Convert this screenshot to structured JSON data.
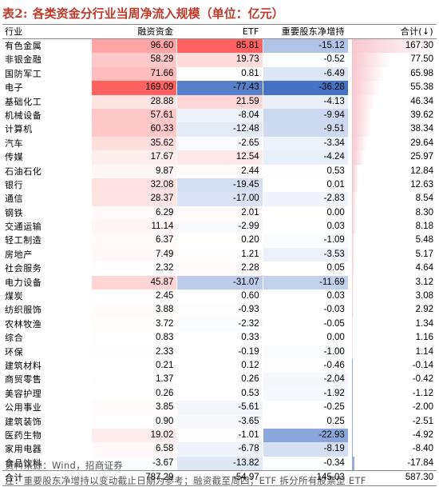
{
  "title": {
    "label": "表2:",
    "text": "各类资金分行业当周净流入规模（单位：亿元）"
  },
  "columns": {
    "name": "行业",
    "rzzj": "融资资金",
    "etf": "ETF",
    "gd": "重要股东净增持",
    "sum": "合计(↓)"
  },
  "rows": [
    {
      "name": "有色金属",
      "rzzj": "96.60",
      "etf": "85.81",
      "gd": "-15.12",
      "sum": "167.30"
    },
    {
      "name": "非银金融",
      "rzzj": "58.29",
      "etf": "19.73",
      "gd": "-0.52",
      "sum": "77.50"
    },
    {
      "name": "国防军工",
      "rzzj": "71.66",
      "etf": "0.81",
      "gd": "-6.49",
      "sum": "65.98"
    },
    {
      "name": "电子",
      "rzzj": "169.09",
      "etf": "-77.43",
      "gd": "-36.28",
      "sum": "55.38"
    },
    {
      "name": "基础化工",
      "rzzj": "28.88",
      "etf": "21.59",
      "gd": "-4.13",
      "sum": "46.34"
    },
    {
      "name": "机械设备",
      "rzzj": "57.61",
      "etf": "-8.04",
      "gd": "-9.94",
      "sum": "39.62"
    },
    {
      "name": "计算机",
      "rzzj": "60.33",
      "etf": "-12.48",
      "gd": "-9.51",
      "sum": "38.34"
    },
    {
      "name": "汽车",
      "rzzj": "35.62",
      "etf": "-2.65",
      "gd": "-3.34",
      "sum": "29.64"
    },
    {
      "name": "传媒",
      "rzzj": "17.67",
      "etf": "12.54",
      "gd": "-4.24",
      "sum": "25.97"
    },
    {
      "name": "石油石化",
      "rzzj": "9.87",
      "etf": "2.44",
      "gd": "0.53",
      "sum": "12.84"
    },
    {
      "name": "银行",
      "rzzj": "32.08",
      "etf": "-19.45",
      "gd": "0.01",
      "sum": "12.63"
    },
    {
      "name": "通信",
      "rzzj": "28.37",
      "etf": "-17.00",
      "gd": "-2.83",
      "sum": "8.54"
    },
    {
      "name": "钢铁",
      "rzzj": "6.29",
      "etf": "2.01",
      "gd": "0.00",
      "sum": "8.30"
    },
    {
      "name": "交通运输",
      "rzzj": "11.14",
      "etf": "-2.99",
      "gd": "0.03",
      "sum": "8.18"
    },
    {
      "name": "轻工制造",
      "rzzj": "6.37",
      "etf": "0.20",
      "gd": "-1.09",
      "sum": "5.48"
    },
    {
      "name": "房地产",
      "rzzj": "7.49",
      "etf": "1.21",
      "gd": "-3.53",
      "sum": "5.17"
    },
    {
      "name": "社会服务",
      "rzzj": "2.32",
      "etf": "2.28",
      "gd": "0.05",
      "sum": "4.64"
    },
    {
      "name": "电力设备",
      "rzzj": "45.87",
      "etf": "-31.07",
      "gd": "-11.69",
      "sum": "3.12"
    },
    {
      "name": "煤炭",
      "rzzj": "2.45",
      "etf": "0.60",
      "gd": "0.03",
      "sum": "3.08"
    },
    {
      "name": "纺织服饰",
      "rzzj": "3.88",
      "etf": "-0.93",
      "gd": "-0.03",
      "sum": "2.92"
    },
    {
      "name": "农林牧渔",
      "rzzj": "3.72",
      "etf": "-2.32",
      "gd": "-0.05",
      "sum": "1.34"
    },
    {
      "name": "综合",
      "rzzj": "0.83",
      "etf": "0.33",
      "gd": "0.00",
      "sum": "1.16"
    },
    {
      "name": "环保",
      "rzzj": "2.33",
      "etf": "-0.19",
      "gd": "-1.00",
      "sum": "1.14"
    },
    {
      "name": "建筑材料",
      "rzzj": "0.21",
      "etf": "0.12",
      "gd": "-0.46",
      "sum": "-0.14"
    },
    {
      "name": "商贸零售",
      "rzzj": "1.37",
      "etf": "0.26",
      "gd": "-2.04",
      "sum": "-0.42"
    },
    {
      "name": "美容护理",
      "rzzj": "0.26",
      "etf": "0.53",
      "gd": "-1.92",
      "sum": "-1.12"
    },
    {
      "name": "公用事业",
      "rzzj": "3.85",
      "etf": "-5.61",
      "gd": "-0.25",
      "sum": "-2.00"
    },
    {
      "name": "建筑装饰",
      "rzzj": "0.90",
      "etf": "-3.65",
      "gd": "0.25",
      "sum": "-2.51"
    },
    {
      "name": "医药生物",
      "rzzj": "19.02",
      "etf": "-1.01",
      "gd": "-22.93",
      "sum": "-4.92"
    },
    {
      "name": "家用电器",
      "rzzj": "6.58",
      "etf": "-6.78",
      "gd": "-8.19",
      "sum": "-8.40"
    },
    {
      "name": "食品饮料",
      "rzzj": "-3.67",
      "etf": "-13.82",
      "gd": "-0.34",
      "sum": "-17.84"
    }
  ],
  "total": {
    "name": "合计",
    "rzzj": "787.29",
    "etf": "-54.97",
    "gd": "-145.03",
    "sum": "587.30"
  },
  "colors": {
    "title": "#c0392b",
    "pos_strong": "#ef5350",
    "neg_strong": "#4472c4",
    "bar_pos": "#f8c7cf",
    "bar_neg": "#9aa9e0"
  },
  "footer": {
    "source": "资料来源：Wind，招商证券",
    "note": "注：重要股东净增持以变动截止日期为参考；融资截至周四；ETF 拆分所有股票型 ETF"
  }
}
